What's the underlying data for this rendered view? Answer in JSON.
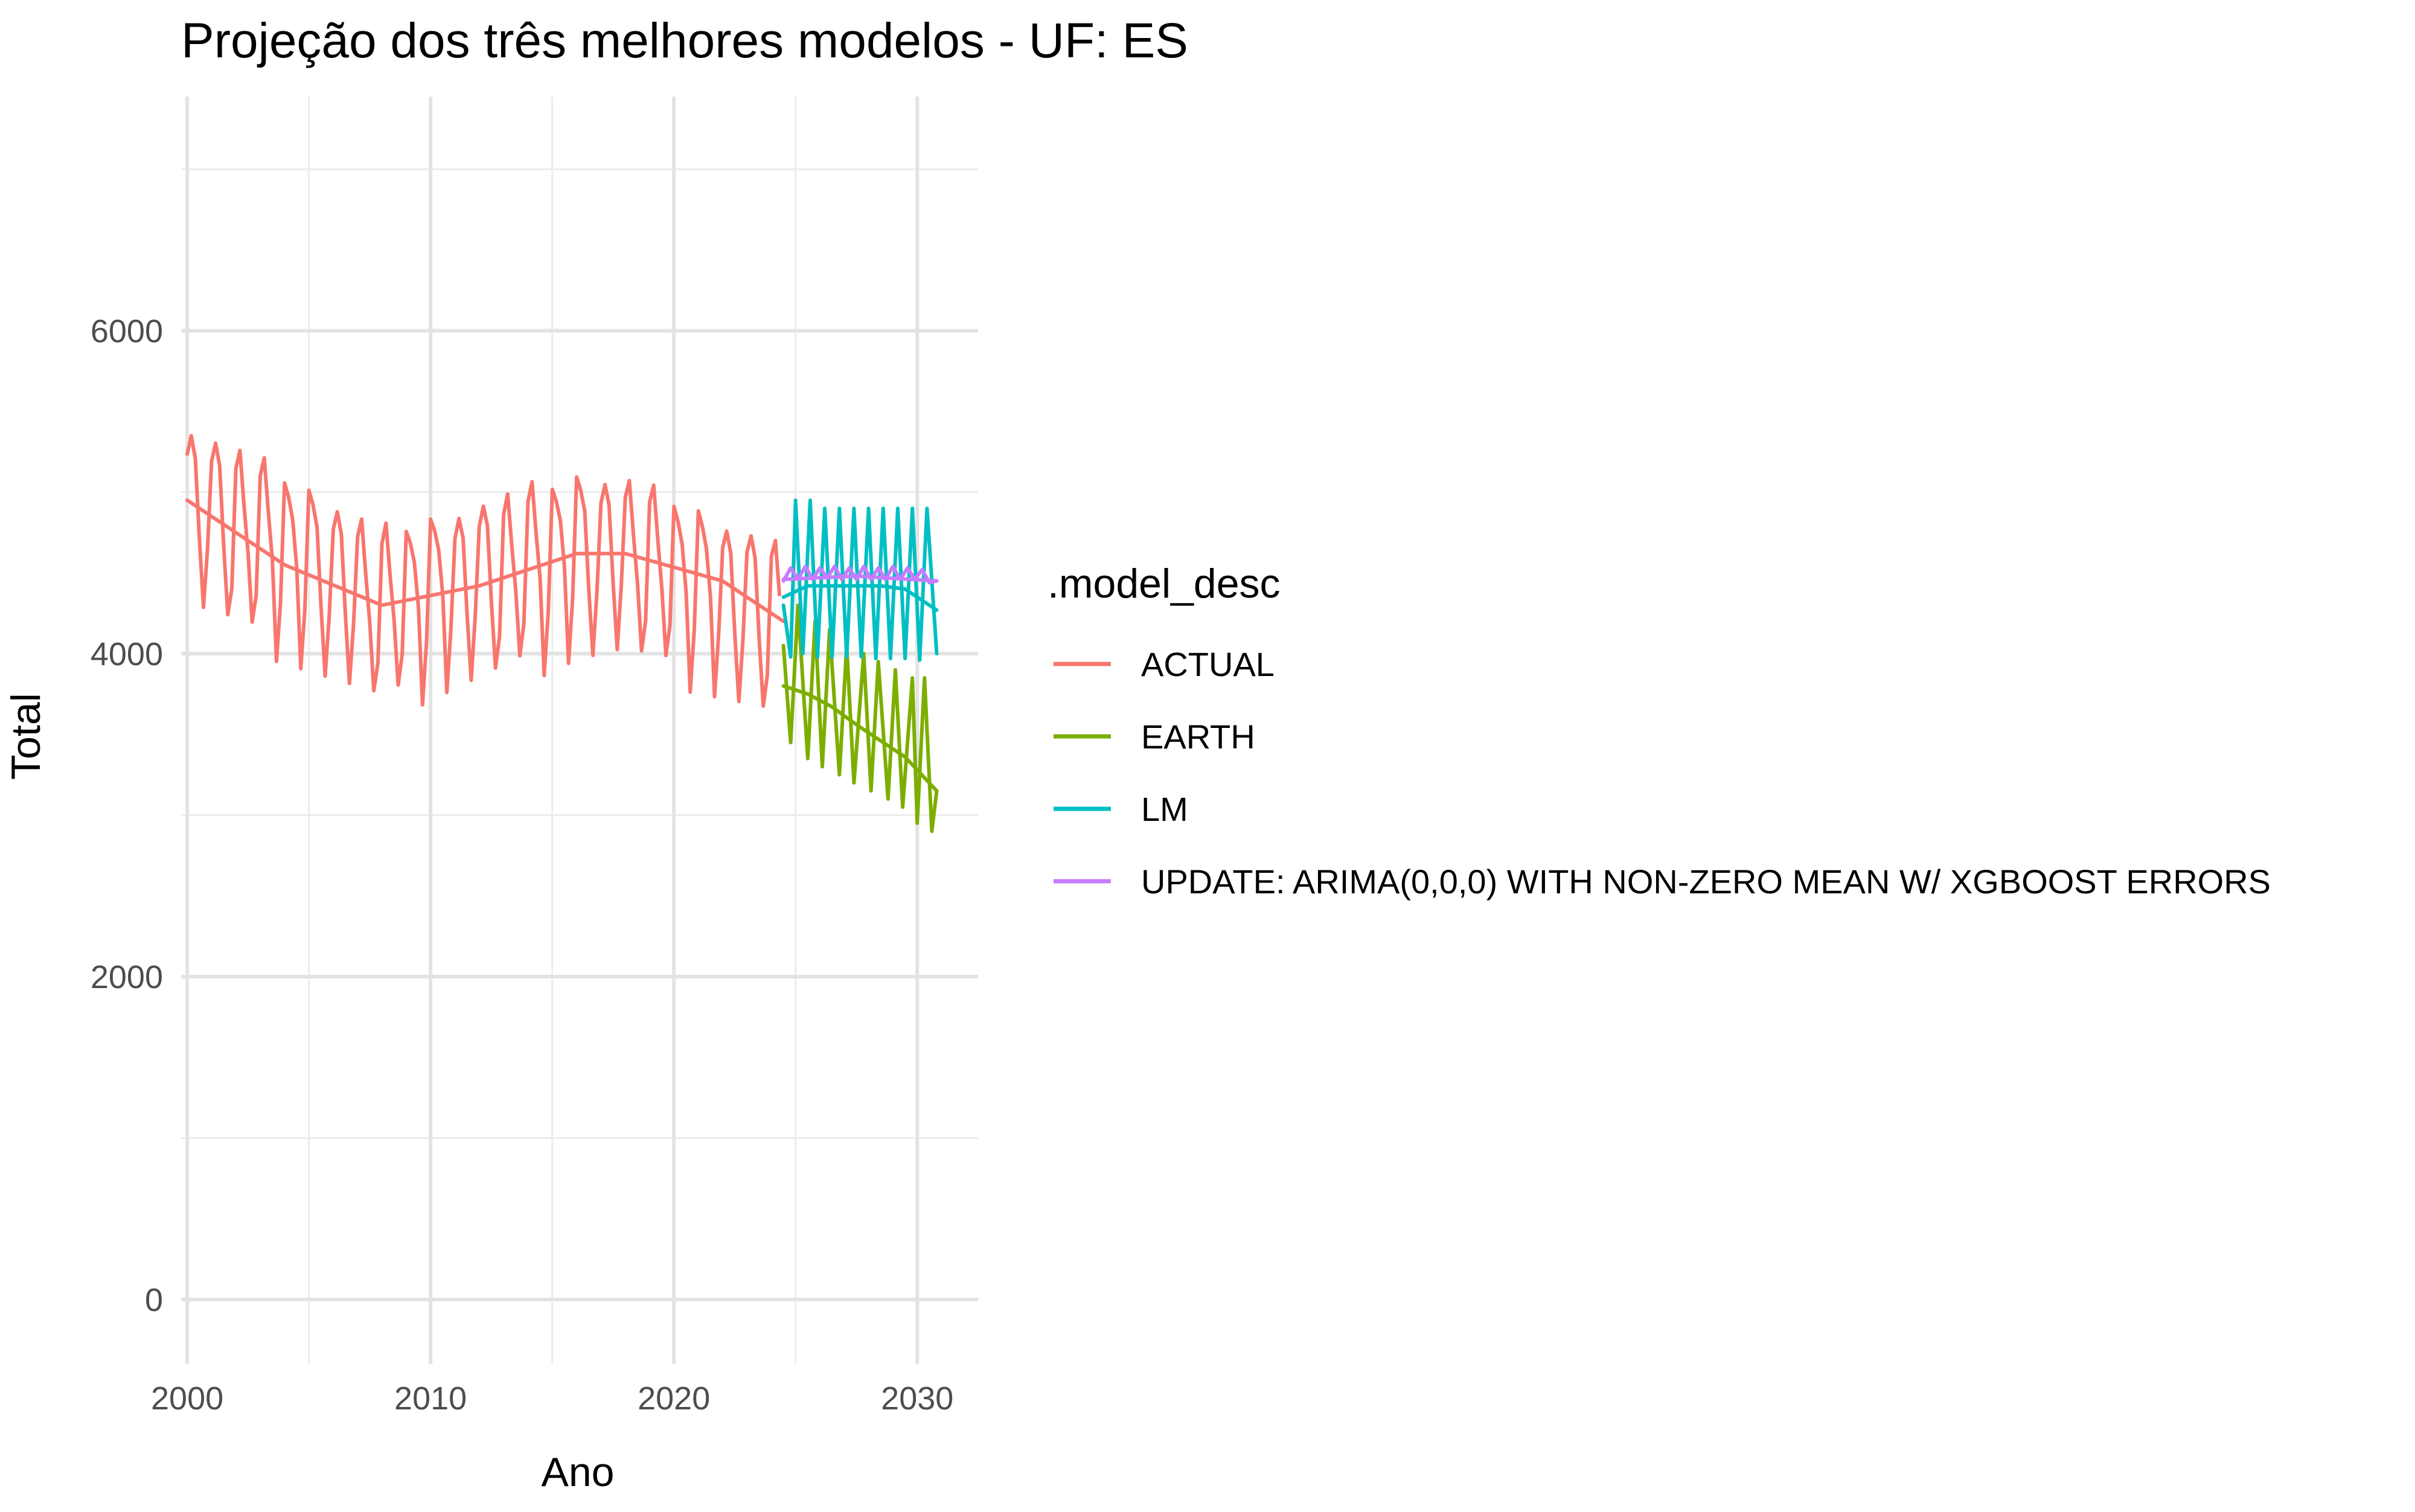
{
  "chart_data": {
    "type": "line",
    "title": "Projeção dos três melhores modelos - UF: ES",
    "xlabel": "Ano",
    "ylabel": "Total",
    "xlim": [
      1999.75,
      2032.5
    ],
    "ylim": [
      -400,
      7450
    ],
    "x_ticks": [
      2000,
      2010,
      2020,
      2030
    ],
    "y_ticks": [
      0,
      2000,
      4000,
      6000
    ],
    "grid": true,
    "legend": {
      "title": ".model_desc",
      "position": "right"
    },
    "series": [
      {
        "name": "ACTUAL",
        "color": "#F8766D",
        "pattern": {
          "x_start": 2000.0,
          "x_end": 2024.5,
          "step": 0.1667,
          "anchors": [
            [
              2000,
              4950
            ],
            [
              2008,
              4300
            ],
            [
              2016,
              4620
            ],
            [
              2018,
              4620
            ],
            [
              2024.5,
              4200
            ]
          ],
          "amplitude": 520,
          "phase": 0.5
        },
        "points": [
          [
            2000.0,
            4780
          ],
          [
            2000.3,
            5300
          ],
          [
            2000.5,
            5450
          ],
          [
            2000.7,
            5150
          ],
          [
            2001.0,
            4250
          ],
          [
            2001.2,
            4900
          ],
          [
            2001.3,
            5450
          ],
          [
            2001.6,
            4950
          ],
          [
            2002.0,
            4050
          ],
          [
            2002.2,
            4600
          ],
          [
            2002.4,
            5100
          ],
          [
            2002.7,
            4700
          ],
          [
            2003.0,
            4050
          ],
          [
            2003.3,
            4400
          ],
          [
            2003.5,
            5050
          ],
          [
            2003.7,
            4550
          ],
          [
            2004.0,
            3900
          ],
          [
            2004.3,
            4400
          ],
          [
            2004.6,
            4950
          ],
          [
            2005.0,
            3750
          ],
          [
            2005.3,
            4500
          ],
          [
            2005.5,
            4900
          ],
          [
            2006.0,
            3720
          ],
          [
            2006.3,
            4400
          ],
          [
            2006.6,
            4900
          ],
          [
            2007.0,
            3720
          ],
          [
            2007.3,
            4400
          ],
          [
            2007.5,
            4900
          ],
          [
            2008.0,
            3750
          ],
          [
            2008.5,
            4850
          ],
          [
            2009.0,
            3800
          ],
          [
            2009.5,
            4850
          ],
          [
            2010.0,
            3800
          ],
          [
            2010.5,
            5100
          ],
          [
            2011.0,
            4050
          ],
          [
            2011.2,
            5350
          ],
          [
            2011.5,
            4150
          ],
          [
            2012.0,
            4000
          ],
          [
            2012.5,
            5000
          ],
          [
            2013.0,
            4000
          ],
          [
            2013.5,
            5000
          ],
          [
            2014.0,
            4050
          ],
          [
            2014.5,
            5050
          ],
          [
            2015.0,
            4150
          ],
          [
            2015.2,
            5300
          ],
          [
            2015.5,
            4400
          ],
          [
            2016.0,
            4350
          ],
          [
            2016.3,
            5300
          ],
          [
            2016.8,
            3650
          ],
          [
            2017.3,
            5200
          ],
          [
            2017.8,
            4250
          ],
          [
            2018.3,
            5300
          ],
          [
            2019.0,
            4100
          ],
          [
            2019.5,
            5100
          ],
          [
            2020.0,
            4000
          ],
          [
            2020.3,
            4950
          ],
          [
            2021.0,
            4050
          ],
          [
            2021.5,
            4800
          ],
          [
            2022.0,
            4050
          ],
          [
            2022.5,
            4800
          ],
          [
            2023.0,
            3950
          ],
          [
            2023.5,
            4800
          ],
          [
            2024.0,
            4100
          ],
          [
            2024.5,
            4550
          ]
        ],
        "smooth_points": [
          [
            2000,
            4950
          ],
          [
            2004,
            4550
          ],
          [
            2008,
            4300
          ],
          [
            2012,
            4420
          ],
          [
            2016,
            4620
          ],
          [
            2018,
            4620
          ],
          [
            2022,
            4450
          ],
          [
            2024.5,
            4200
          ]
        ]
      },
      {
        "name": "EARTH",
        "color": "#7CAE00",
        "points": [
          [
            2024.5,
            4050
          ],
          [
            2024.8,
            3450
          ],
          [
            2025.1,
            4300
          ],
          [
            2025.5,
            3350
          ],
          [
            2025.8,
            4200
          ],
          [
            2026.1,
            3300
          ],
          [
            2026.4,
            4150
          ],
          [
            2026.8,
            3250
          ],
          [
            2027.1,
            4050
          ],
          [
            2027.4,
            3200
          ],
          [
            2027.8,
            4000
          ],
          [
            2028.1,
            3150
          ],
          [
            2028.4,
            3950
          ],
          [
            2028.8,
            3100
          ],
          [
            2029.1,
            3900
          ],
          [
            2029.4,
            3050
          ],
          [
            2029.8,
            3850
          ],
          [
            2030.0,
            2950
          ],
          [
            2030.3,
            3850
          ],
          [
            2030.6,
            2900
          ],
          [
            2030.8,
            3150
          ]
        ],
        "smooth_points": [
          [
            2024.5,
            3800
          ],
          [
            2025.5,
            3750
          ],
          [
            2026.5,
            3670
          ],
          [
            2027.5,
            3560
          ],
          [
            2028.5,
            3460
          ],
          [
            2029.5,
            3360
          ],
          [
            2030.8,
            3150
          ]
        ]
      },
      {
        "name": "LM",
        "color": "#00BFC4",
        "points": [
          [
            2024.5,
            4300
          ],
          [
            2024.8,
            3980
          ],
          [
            2025.0,
            4950
          ],
          [
            2025.3,
            4000
          ],
          [
            2025.6,
            4950
          ],
          [
            2025.9,
            3980
          ],
          [
            2026.2,
            4900
          ],
          [
            2026.5,
            3980
          ],
          [
            2026.8,
            4900
          ],
          [
            2027.1,
            3980
          ],
          [
            2027.4,
            4900
          ],
          [
            2027.7,
            3980
          ],
          [
            2028.0,
            4900
          ],
          [
            2028.3,
            3970
          ],
          [
            2028.6,
            4900
          ],
          [
            2028.9,
            3970
          ],
          [
            2029.2,
            4900
          ],
          [
            2029.5,
            3970
          ],
          [
            2029.8,
            4900
          ],
          [
            2030.1,
            3960
          ],
          [
            2030.4,
            4900
          ],
          [
            2030.8,
            4000
          ]
        ],
        "smooth_points": [
          [
            2024.5,
            4350
          ],
          [
            2025.5,
            4420
          ],
          [
            2026.5,
            4420
          ],
          [
            2027.5,
            4420
          ],
          [
            2028.5,
            4420
          ],
          [
            2029.5,
            4400
          ],
          [
            2030.8,
            4270
          ]
        ]
      },
      {
        "name": "UPDATE: ARIMA(0,0,0) WITH NON-ZERO MEAN W/ XGBOOST ERRORS",
        "color": "#C77CFF",
        "points": [
          [
            2024.5,
            4450
          ],
          [
            2024.8,
            4530
          ],
          [
            2025.1,
            4460
          ],
          [
            2025.4,
            4540
          ],
          [
            2025.7,
            4460
          ],
          [
            2026.0,
            4530
          ],
          [
            2026.3,
            4470
          ],
          [
            2026.6,
            4540
          ],
          [
            2026.9,
            4460
          ],
          [
            2027.2,
            4530
          ],
          [
            2027.5,
            4460
          ],
          [
            2027.8,
            4540
          ],
          [
            2028.1,
            4460
          ],
          [
            2028.4,
            4530
          ],
          [
            2028.7,
            4460
          ],
          [
            2029.0,
            4540
          ],
          [
            2029.3,
            4460
          ],
          [
            2029.6,
            4530
          ],
          [
            2029.9,
            4460
          ],
          [
            2030.2,
            4520
          ],
          [
            2030.5,
            4440
          ],
          [
            2030.8,
            4450
          ]
        ],
        "smooth_points": [
          [
            2024.5,
            4460
          ],
          [
            2027.5,
            4480
          ],
          [
            2030.8,
            4450
          ]
        ]
      }
    ]
  }
}
